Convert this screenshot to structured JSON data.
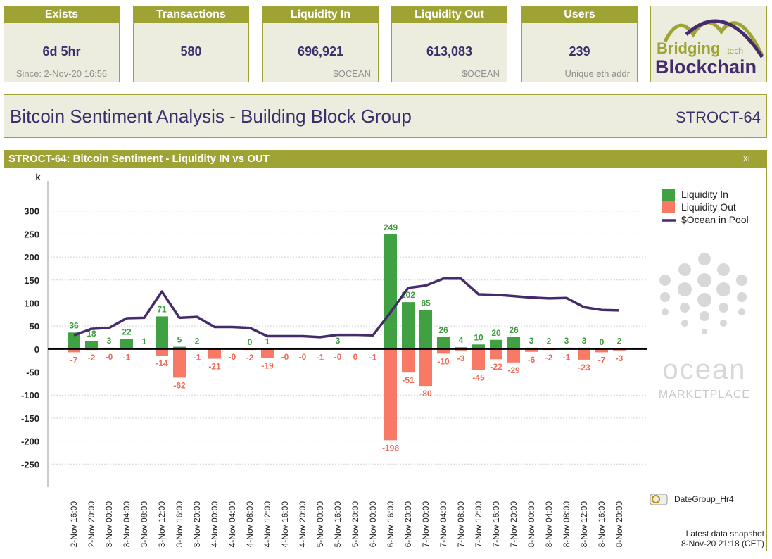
{
  "cards": [
    {
      "title": "Exists",
      "value": "6d 5hr",
      "note": "Since: 2-Nov-20 16:56"
    },
    {
      "title": "Transactions",
      "value": "580"
    },
    {
      "title": "Liquidity In",
      "value": "696,921",
      "note": "$OCEAN"
    },
    {
      "title": "Liquidity Out",
      "value": "613,083",
      "note": "$OCEAN"
    },
    {
      "title": "Users",
      "value": "239",
      "note": "Unique eth addr"
    }
  ],
  "logo": {
    "line1": "Bridging",
    "suffix": ".tech",
    "line2": "Blockchain"
  },
  "header": {
    "title": "Bitcoin Sentiment Analysis - Building Block Group",
    "code": "STROCT-64"
  },
  "panel": {
    "title": "STROCT-64: Bitcoin Sentiment - Liquidity IN vs OUT",
    "export": "XL"
  },
  "chart_data": {
    "type": "bar_line",
    "y_unit": "k",
    "categories": [
      "2-Nov 16:00",
      "2-Nov 20:00",
      "3-Nov 00:00",
      "3-Nov 04:00",
      "3-Nov 08:00",
      "3-Nov 12:00",
      "3-Nov 16:00",
      "3-Nov 20:00",
      "4-Nov 00:00",
      "4-Nov 04:00",
      "4-Nov 08:00",
      "4-Nov 12:00",
      "4-Nov 16:00",
      "4-Nov 20:00",
      "5-Nov 00:00",
      "5-Nov 16:00",
      "5-Nov 20:00",
      "6-Nov 00:00",
      "6-Nov 16:00",
      "6-Nov 20:00",
      "7-Nov 00:00",
      "7-Nov 04:00",
      "7-Nov 08:00",
      "7-Nov 12:00",
      "7-Nov 16:00",
      "7-Nov 20:00",
      "8-Nov 00:00",
      "8-Nov 04:00",
      "8-Nov 08:00",
      "8-Nov 12:00",
      "8-Nov 16:00",
      "8-Nov 20:00"
    ],
    "series": [
      {
        "name": "Liquidity In",
        "kind": "bar",
        "color": "#3fa142",
        "label_color": "#3d9a3d",
        "values": [
          36,
          18,
          3,
          22,
          1,
          71,
          5,
          2,
          null,
          null,
          0,
          1,
          null,
          null,
          null,
          3,
          null,
          null,
          249,
          102,
          85,
          26,
          4,
          10,
          20,
          26,
          3,
          2,
          3,
          3,
          0,
          2
        ],
        "value_labels": [
          null,
          null,
          null,
          null,
          null,
          null,
          null,
          null,
          null,
          null,
          null,
          null,
          null,
          null,
          null,
          null,
          null,
          null,
          null,
          null,
          null,
          null,
          null,
          null,
          null,
          null,
          null,
          null,
          null,
          null,
          null,
          null
        ]
      },
      {
        "name": "Liquidity Out",
        "kind": "bar",
        "color": "#f87a66",
        "label_color": "#f06a55",
        "values": [
          -7,
          -2,
          -0.3,
          -1,
          null,
          -14,
          -62,
          -1,
          -21,
          -0.3,
          -2,
          -19,
          -0.3,
          -0.3,
          -1,
          -0.3,
          0,
          -1,
          -198,
          -51,
          -80,
          -10,
          -3,
          -45,
          -22,
          -29,
          -6,
          -2,
          -1,
          -23,
          -7,
          -3
        ],
        "value_labels": [
          null,
          null,
          "-0",
          null,
          null,
          null,
          null,
          null,
          null,
          "-0",
          null,
          null,
          "-0",
          "-0",
          null,
          "-0",
          null,
          null,
          null,
          null,
          null,
          null,
          null,
          null,
          null,
          null,
          null,
          null,
          null,
          null,
          null,
          null
        ]
      },
      {
        "name": "$Ocean in Pool",
        "kind": "line",
        "color": "#452b6b",
        "values": [
          30,
          44,
          46,
          67,
          68,
          125,
          68,
          70,
          48,
          48,
          46,
          28,
          28,
          28,
          26,
          31,
          31,
          30,
          80,
          133,
          138,
          153,
          153,
          119,
          118,
          115,
          112,
          110,
          111,
          91,
          85,
          84
        ]
      }
    ],
    "ylim": [
      -300,
      350
    ],
    "yticks": [
      -250,
      -200,
      -150,
      -100,
      -50,
      0,
      50,
      100,
      150,
      200,
      250,
      300
    ],
    "grid": true,
    "legend": "top-right",
    "dimension": "DateGroup_Hr4",
    "snapshot_label": "Latest data snapshot",
    "snapshot_time": "8-Nov-20 21:18 (CET)",
    "watermark": {
      "brand": "ocean",
      "sub": "MARKETPLACE"
    }
  }
}
